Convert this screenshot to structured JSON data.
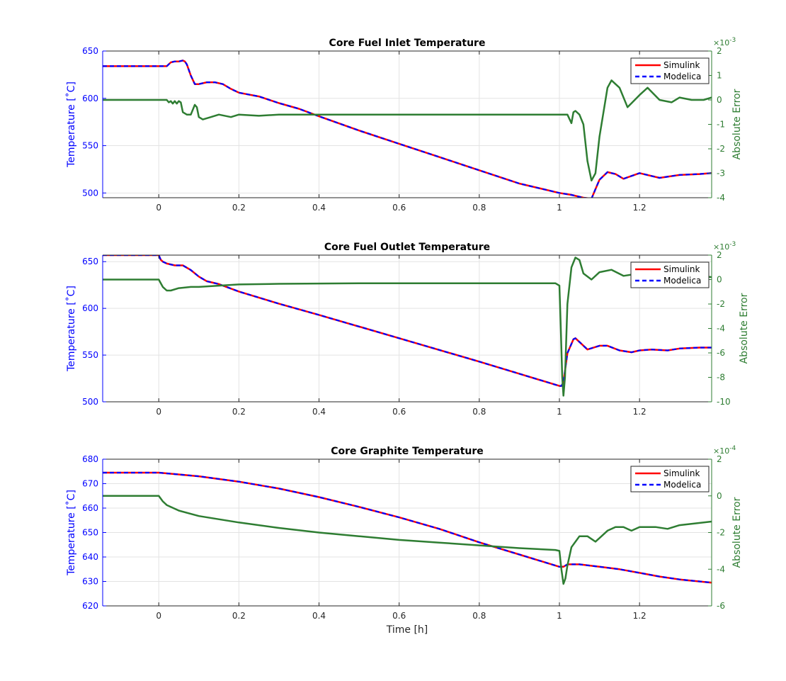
{
  "colors": {
    "simulink": "#ff0000",
    "modelica": "#0000ff",
    "error": "#2e7d32",
    "left_axis": "#0000ff",
    "right_axis": "#2e7d32",
    "grid": "#e3e3e3"
  },
  "chart_data": [
    {
      "type": "line",
      "title": "Core Fuel Inlet Temperature",
      "xlabel": "",
      "ylabel": "Temperature [$^{\\circ}$C]",
      "ylabel_display": "Temperature [˚C]",
      "y2label": "Absolute Error",
      "y2_multiplier": "×10",
      "y2_exponent": "-3",
      "xlim": [
        -0.14,
        1.38
      ],
      "ylim": [
        495,
        650
      ],
      "y2lim": [
        -4,
        2
      ],
      "xticks": [
        0,
        0.2,
        0.4,
        0.6,
        0.8,
        1,
        1.2
      ],
      "xtick_labels": [
        "0",
        "0.2",
        "0.4",
        "0.6",
        "0.8",
        "1",
        "1.2"
      ],
      "yticks": [
        500,
        550,
        600,
        650
      ],
      "ytick_labels": [
        "500",
        "550",
        "600",
        "650"
      ],
      "y2ticks": [
        -4,
        -3,
        -2,
        -1,
        0,
        1,
        2
      ],
      "y2tick_labels": [
        "-4",
        "-3",
        "-2",
        "-1",
        "0",
        "1",
        "2"
      ],
      "grid": true,
      "legend_position": "top-right",
      "legend": [
        "Simulink",
        "Modelica"
      ],
      "series": [
        {
          "name": "Simulink",
          "axis": "left",
          "x": [
            -0.14,
            0.02,
            0.03,
            0.04,
            0.05,
            0.06,
            0.065,
            0.07,
            0.08,
            0.09,
            0.1,
            0.12,
            0.14,
            0.16,
            0.18,
            0.2,
            0.25,
            0.3,
            0.35,
            0.4,
            0.5,
            0.6,
            0.7,
            0.8,
            0.9,
            1.0,
            1.03,
            1.06,
            1.08,
            1.09,
            1.1,
            1.12,
            1.14,
            1.16,
            1.18,
            1.2,
            1.25,
            1.3,
            1.35,
            1.38
          ],
          "y": [
            634,
            634,
            638,
            639,
            639,
            640,
            639,
            636,
            624,
            615,
            615,
            617,
            617,
            615,
            610,
            606,
            602,
            595,
            589,
            581,
            566,
            552,
            538,
            524,
            510,
            500,
            498,
            495,
            494,
            504,
            514,
            522,
            520,
            515,
            518,
            521,
            516,
            519,
            520,
            521
          ]
        },
        {
          "name": "Modelica",
          "axis": "left",
          "x": [
            -0.14,
            0.02,
            0.03,
            0.04,
            0.05,
            0.06,
            0.065,
            0.07,
            0.08,
            0.09,
            0.1,
            0.12,
            0.14,
            0.16,
            0.18,
            0.2,
            0.25,
            0.3,
            0.35,
            0.4,
            0.5,
            0.6,
            0.7,
            0.8,
            0.9,
            1.0,
            1.03,
            1.06,
            1.08,
            1.09,
            1.1,
            1.12,
            1.14,
            1.16,
            1.18,
            1.2,
            1.25,
            1.3,
            1.35,
            1.38
          ],
          "y": [
            634,
            634,
            638,
            639,
            639,
            640,
            639,
            636,
            624,
            615,
            615,
            617,
            617,
            615,
            610,
            606,
            602,
            595,
            589,
            581,
            566,
            552,
            538,
            524,
            510,
            500,
            498,
            495,
            494,
            504,
            514,
            522,
            520,
            515,
            518,
            521,
            516,
            519,
            520,
            521
          ]
        },
        {
          "name": "Absolute Error",
          "axis": "right",
          "x": [
            -0.14,
            0.02,
            0.025,
            0.03,
            0.035,
            0.04,
            0.045,
            0.05,
            0.055,
            0.06,
            0.07,
            0.08,
            0.09,
            0.095,
            0.1,
            0.11,
            0.13,
            0.15,
            0.18,
            0.2,
            0.25,
            0.3,
            0.4,
            0.6,
            0.8,
            1.0,
            1.02,
            1.03,
            1.035,
            1.04,
            1.05,
            1.06,
            1.07,
            1.08,
            1.09,
            1.1,
            1.12,
            1.13,
            1.15,
            1.17,
            1.2,
            1.22,
            1.25,
            1.28,
            1.3,
            1.33,
            1.36,
            1.38
          ],
          "y": [
            0.0,
            0.0,
            -0.1,
            -0.05,
            -0.15,
            -0.05,
            -0.15,
            -0.05,
            -0.1,
            -0.5,
            -0.6,
            -0.6,
            -0.2,
            -0.3,
            -0.7,
            -0.8,
            -0.7,
            -0.6,
            -0.7,
            -0.6,
            -0.65,
            -0.6,
            -0.6,
            -0.6,
            -0.6,
            -0.6,
            -0.6,
            -0.95,
            -0.5,
            -0.45,
            -0.6,
            -1.0,
            -2.5,
            -3.3,
            -3.0,
            -1.5,
            0.5,
            0.8,
            0.5,
            -0.3,
            0.2,
            0.5,
            0.0,
            -0.1,
            0.1,
            0.0,
            0.0,
            0.1
          ]
        }
      ]
    },
    {
      "type": "line",
      "title": "Core Fuel Outlet Temperature",
      "xlabel": "",
      "ylabel": "Temperature [$^{\\circ}$C]",
      "ylabel_display": "Temperature [˚C]",
      "y2label": "Absolute Error",
      "y2_multiplier": "×10",
      "y2_exponent": "-3",
      "xlim": [
        -0.14,
        1.38
      ],
      "ylim": [
        500,
        657
      ],
      "y2lim": [
        -10,
        2
      ],
      "xticks": [
        0,
        0.2,
        0.4,
        0.6,
        0.8,
        1,
        1.2
      ],
      "xtick_labels": [
        "0",
        "0.2",
        "0.4",
        "0.6",
        "0.8",
        "1",
        "1.2"
      ],
      "yticks": [
        500,
        550,
        600,
        650
      ],
      "ytick_labels": [
        "500",
        "550",
        "600",
        "650"
      ],
      "y2ticks": [
        -10,
        -8,
        -6,
        -4,
        -2,
        0,
        2
      ],
      "y2tick_labels": [
        "-10",
        "-8",
        "-6",
        "-4",
        "-2",
        "0",
        "2"
      ],
      "grid": true,
      "legend_position": "top-right",
      "legend": [
        "Simulink",
        "Modelica"
      ],
      "series": [
        {
          "name": "Simulink",
          "axis": "left",
          "x": [
            -0.14,
            0.0,
            0.005,
            0.01,
            0.02,
            0.04,
            0.06,
            0.08,
            0.1,
            0.12,
            0.15,
            0.2,
            0.3,
            0.4,
            0.6,
            0.8,
            0.9,
            1.0,
            1.005,
            1.01,
            1.02,
            1.035,
            1.04,
            1.05,
            1.07,
            1.1,
            1.12,
            1.15,
            1.18,
            1.2,
            1.23,
            1.27,
            1.3,
            1.35,
            1.38
          ],
          "y": [
            657,
            657,
            652,
            650,
            648,
            646,
            646,
            641,
            634,
            629,
            626,
            618,
            605,
            593,
            568,
            543,
            530,
            517,
            517,
            521,
            552,
            567,
            568,
            564,
            556,
            560,
            560,
            555,
            553,
            555,
            556,
            555,
            557,
            558,
            558
          ]
        },
        {
          "name": "Modelica",
          "axis": "left",
          "x": [
            -0.14,
            0.0,
            0.005,
            0.01,
            0.02,
            0.04,
            0.06,
            0.08,
            0.1,
            0.12,
            0.15,
            0.2,
            0.3,
            0.4,
            0.6,
            0.8,
            0.9,
            1.0,
            1.005,
            1.01,
            1.02,
            1.035,
            1.04,
            1.05,
            1.07,
            1.1,
            1.12,
            1.15,
            1.18,
            1.2,
            1.23,
            1.27,
            1.3,
            1.35,
            1.38
          ],
          "y": [
            657,
            657,
            652,
            650,
            648,
            646,
            646,
            641,
            634,
            629,
            626,
            618,
            605,
            593,
            568,
            543,
            530,
            517,
            517,
            521,
            552,
            567,
            568,
            564,
            556,
            560,
            560,
            555,
            553,
            555,
            556,
            555,
            557,
            558,
            558
          ]
        },
        {
          "name": "Absolute Error",
          "axis": "right",
          "x": [
            -0.14,
            0.0,
            0.01,
            0.02,
            0.03,
            0.05,
            0.08,
            0.1,
            0.15,
            0.2,
            0.3,
            0.5,
            0.7,
            0.9,
            0.99,
            1.0,
            1.003,
            1.007,
            1.01,
            1.014,
            1.02,
            1.03,
            1.04,
            1.05,
            1.06,
            1.08,
            1.1,
            1.13,
            1.16,
            1.2,
            1.23,
            1.26,
            1.3,
            1.35,
            1.38
          ],
          "y": [
            0.0,
            0.0,
            -0.6,
            -0.9,
            -0.9,
            -0.7,
            -0.6,
            -0.6,
            -0.5,
            -0.4,
            -0.35,
            -0.3,
            -0.3,
            -0.3,
            -0.3,
            -0.5,
            -3.5,
            -8.0,
            -9.5,
            -8.0,
            -2.0,
            1.0,
            1.8,
            1.6,
            0.5,
            0.0,
            0.6,
            0.8,
            0.3,
            0.5,
            0.3,
            0.4,
            0.5,
            0.3,
            0.2
          ]
        }
      ]
    },
    {
      "type": "line",
      "title": "Core Graphite Temperature",
      "xlabel": "Time [h]",
      "ylabel": "Temperature [$^{\\circ}$C]",
      "ylabel_display": "Temperature [˚C]",
      "y2label": "Absolute Error",
      "y2_multiplier": "×10",
      "y2_exponent": "-4",
      "xlim": [
        -0.14,
        1.38
      ],
      "ylim": [
        620,
        680
      ],
      "y2lim": [
        -6,
        2
      ],
      "xticks": [
        0,
        0.2,
        0.4,
        0.6,
        0.8,
        1,
        1.2
      ],
      "xtick_labels": [
        "0",
        "0.2",
        "0.4",
        "0.6",
        "0.8",
        "1",
        "1.2"
      ],
      "yticks": [
        620,
        630,
        640,
        650,
        660,
        670,
        680
      ],
      "ytick_labels": [
        "620",
        "630",
        "640",
        "650",
        "660",
        "670",
        "680"
      ],
      "y2ticks": [
        -6,
        -4,
        -2,
        0,
        2
      ],
      "y2tick_labels": [
        "-6",
        "-4",
        "-2",
        "0",
        "2"
      ],
      "grid": true,
      "legend_position": "top-right",
      "legend": [
        "Simulink",
        "Modelica"
      ],
      "series": [
        {
          "name": "Simulink",
          "axis": "left",
          "x": [
            -0.14,
            0.0,
            0.1,
            0.2,
            0.3,
            0.4,
            0.5,
            0.6,
            0.7,
            0.8,
            0.9,
            1.0,
            1.01,
            1.02,
            1.05,
            1.1,
            1.15,
            1.2,
            1.25,
            1.3,
            1.38
          ],
          "y": [
            674.5,
            674.5,
            673,
            670.8,
            668,
            664.5,
            660.5,
            656.2,
            651.5,
            646,
            641,
            636,
            636,
            637,
            637,
            636,
            635,
            633.5,
            632,
            630.8,
            629.5
          ]
        },
        {
          "name": "Modelica",
          "axis": "left",
          "x": [
            -0.14,
            0.0,
            0.1,
            0.2,
            0.3,
            0.4,
            0.5,
            0.6,
            0.7,
            0.8,
            0.9,
            1.0,
            1.01,
            1.02,
            1.05,
            1.1,
            1.15,
            1.2,
            1.25,
            1.3,
            1.38
          ],
          "y": [
            674.5,
            674.5,
            673,
            670.8,
            668,
            664.5,
            660.5,
            656.2,
            651.5,
            646,
            641,
            636,
            636,
            637,
            637,
            636,
            635,
            633.5,
            632,
            630.8,
            629.5
          ]
        },
        {
          "name": "Absolute Error",
          "axis": "right",
          "x": [
            -0.14,
            0.0,
            0.01,
            0.02,
            0.05,
            0.1,
            0.2,
            0.3,
            0.4,
            0.5,
            0.6,
            0.7,
            0.8,
            0.9,
            0.99,
            1.0,
            1.005,
            1.01,
            1.015,
            1.02,
            1.03,
            1.05,
            1.07,
            1.09,
            1.1,
            1.12,
            1.14,
            1.16,
            1.18,
            1.2,
            1.24,
            1.27,
            1.3,
            1.38
          ],
          "y": [
            0.0,
            0.0,
            -0.3,
            -0.5,
            -0.8,
            -1.1,
            -1.45,
            -1.75,
            -2.0,
            -2.2,
            -2.4,
            -2.55,
            -2.7,
            -2.85,
            -2.95,
            -3.0,
            -4.0,
            -4.8,
            -4.5,
            -3.8,
            -2.8,
            -2.2,
            -2.2,
            -2.5,
            -2.3,
            -1.9,
            -1.7,
            -1.7,
            -1.9,
            -1.7,
            -1.7,
            -1.8,
            -1.6,
            -1.4
          ]
        }
      ]
    }
  ]
}
